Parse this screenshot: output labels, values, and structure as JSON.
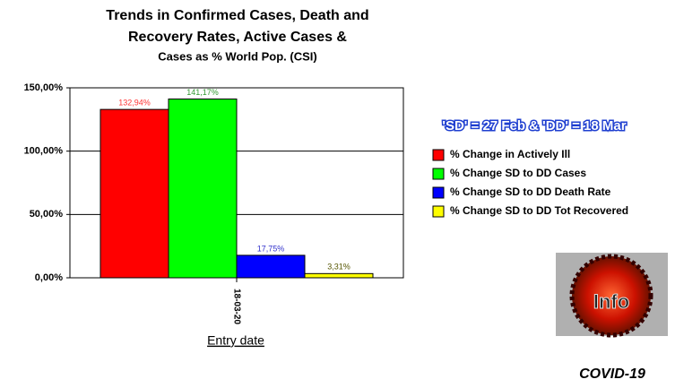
{
  "chart_data": {
    "type": "bar",
    "title": [
      "Trends in Confirmed Cases, Death and",
      "Recovery Rates, Active Cases &",
      "Cases as % World Pop. (CSI)"
    ],
    "annotation": "'SD' = 27 Feb & 'DD' = 18 Mar",
    "logo_text": "Info",
    "logo_caption": "COVID-19",
    "x_label": "Entry date",
    "categories": [
      "18-03-20"
    ],
    "series": [
      {
        "name": "% Change in Actively Ill",
        "color": "#ff0000",
        "label_color": "#ff3333",
        "values": [
          132.94
        ],
        "value_labels": [
          "132,94%"
        ]
      },
      {
        "name": "% Change SD to DD Cases",
        "color": "#00ff00",
        "label_color": "#339933",
        "values": [
          141.17
        ],
        "value_labels": [
          "141,17%"
        ]
      },
      {
        "name": "% Change SD to DD Death Rate",
        "color": "#0000ff",
        "label_color": "#3333cc",
        "values": [
          17.75
        ],
        "value_labels": [
          "17,75%"
        ]
      },
      {
        "name": "% Change SD to DD Tot Recovered",
        "color": "#ffff00",
        "label_color": "#555500",
        "values": [
          3.31
        ],
        "value_labels": [
          "3,31%"
        ]
      }
    ],
    "ylim": [
      0,
      150
    ],
    "yticks": [
      {
        "value": 0,
        "label": "0,00%"
      },
      {
        "value": 50,
        "label": "50,00%"
      },
      {
        "value": 100,
        "label": "100,00%"
      },
      {
        "value": 150,
        "label": "150,00%"
      }
    ],
    "grid": true
  }
}
